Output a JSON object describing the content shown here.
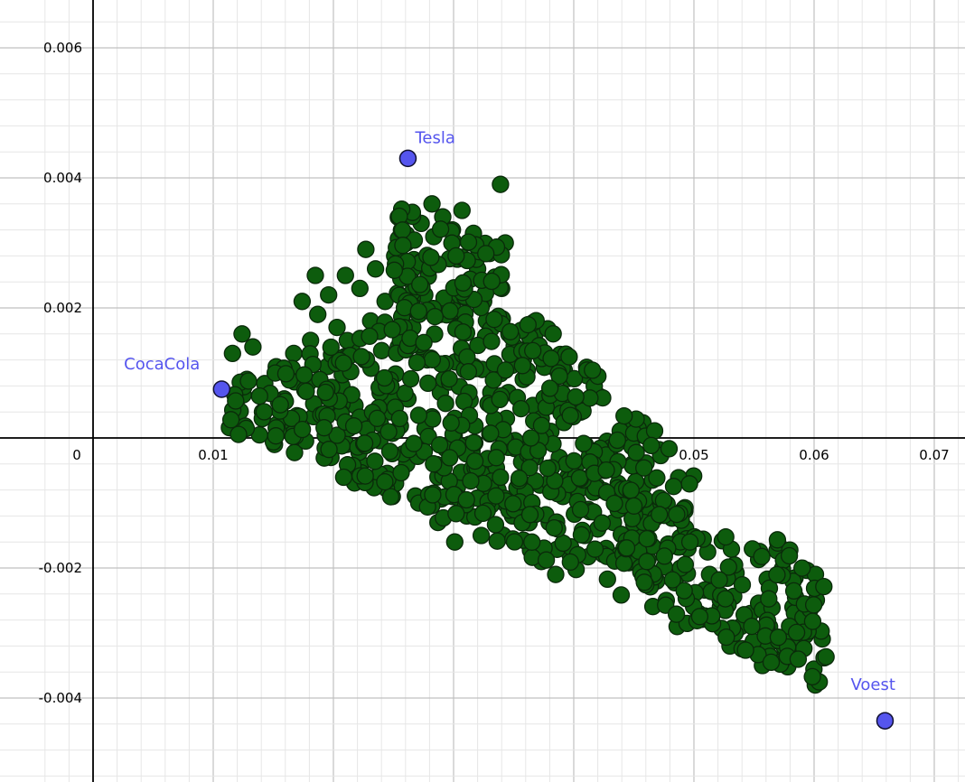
{
  "chart_data": {
    "type": "scatter",
    "title": "",
    "xlabel": "",
    "ylabel": "",
    "xlim": [
      -0.0005,
      0.0725
    ],
    "ylim": [
      -0.0052,
      0.0066
    ],
    "grid": true,
    "x_ticks": [
      0,
      0.01,
      0.05,
      0.06,
      0.07
    ],
    "x_tick_labels": [
      "0",
      "0.01",
      "0.05",
      "0.06",
      "0.07"
    ],
    "y_ticks": [
      0.006,
      0.004,
      0.002,
      -0.002,
      -0.004
    ],
    "y_tick_labels": [
      "0.006",
      "0.004",
      "0.002",
      "-0.002",
      "-0.004"
    ],
    "colors": {
      "cloud_fill": "#0d5c0d",
      "cloud_stroke": "#0a2a0a",
      "highlight_fill": "#5555ee",
      "highlight_label": "#5555ee"
    },
    "cloud_points_approx": [
      [
        0.0116,
        0.0013
      ],
      [
        0.0124,
        0.0016
      ],
      [
        0.0133,
        0.0014
      ],
      [
        0.0128,
        0.0009
      ],
      [
        0.012,
        0.0006
      ],
      [
        0.0141,
        0.0004
      ],
      [
        0.0151,
        -0.0001
      ],
      [
        0.0159,
        0.0006
      ],
      [
        0.0167,
        0.0013
      ],
      [
        0.0174,
        0.0021
      ],
      [
        0.0185,
        0.0025
      ],
      [
        0.0196,
        0.0022
      ],
      [
        0.021,
        0.0025
      ],
      [
        0.0222,
        0.0023
      ],
      [
        0.0227,
        0.0029
      ],
      [
        0.0235,
        0.0026
      ],
      [
        0.0243,
        0.0021
      ],
      [
        0.0251,
        0.0028
      ],
      [
        0.0258,
        0.0031
      ],
      [
        0.0266,
        0.0026
      ],
      [
        0.0273,
        0.0033
      ],
      [
        0.0282,
        0.0036
      ],
      [
        0.0291,
        0.0034
      ],
      [
        0.0299,
        0.0032
      ],
      [
        0.0307,
        0.0035
      ],
      [
        0.0314,
        0.003
      ],
      [
        0.032,
        0.0026
      ],
      [
        0.0325,
        0.0021
      ],
      [
        0.0339,
        0.0039
      ],
      [
        0.0343,
        0.003
      ],
      [
        0.034,
        0.0023
      ],
      [
        0.0346,
        0.0016
      ],
      [
        0.0352,
        0.0013
      ],
      [
        0.0358,
        0.0009
      ],
      [
        0.0366,
        0.0005
      ],
      [
        0.0373,
        0.0003
      ],
      [
        0.0381,
        0.0001
      ],
      [
        0.0388,
        -0.0003
      ],
      [
        0.0395,
        -0.0006
      ],
      [
        0.0404,
        -0.0008
      ],
      [
        0.0412,
        -0.0011
      ],
      [
        0.042,
        -0.0014
      ],
      [
        0.0427,
        -0.0017
      ],
      [
        0.0433,
        -0.0013
      ],
      [
        0.044,
        -0.0009
      ],
      [
        0.0448,
        -0.0011
      ],
      [
        0.0455,
        -0.0015
      ],
      [
        0.0461,
        -0.0019
      ],
      [
        0.0469,
        -0.0022
      ],
      [
        0.0477,
        -0.0025
      ],
      [
        0.0486,
        -0.0029
      ],
      [
        0.0495,
        -0.0017
      ],
      [
        0.0504,
        -0.0027
      ],
      [
        0.0513,
        -0.0021
      ],
      [
        0.0522,
        -0.0026
      ],
      [
        0.053,
        -0.0032
      ],
      [
        0.0539,
        -0.0029
      ],
      [
        0.0547,
        -0.0027
      ],
      [
        0.0557,
        -0.0035
      ],
      [
        0.0579,
        -0.0032
      ],
      [
        0.0601,
        -0.0038
      ],
      [
        0.0181,
        0.0015
      ],
      [
        0.0195,
        0.0011
      ],
      [
        0.0207,
        0.0008
      ],
      [
        0.0218,
        0.0005
      ],
      [
        0.0229,
        0.0002
      ],
      [
        0.0241,
        0.0009
      ],
      [
        0.0254,
        0.0014
      ],
      [
        0.0266,
        0.0017
      ],
      [
        0.0278,
        0.0012
      ],
      [
        0.0289,
        0.0007
      ],
      [
        0.0301,
        0.0003
      ],
      [
        0.0313,
        -0.0001
      ],
      [
        0.0325,
        -0.0005
      ],
      [
        0.0337,
        -0.0008
      ],
      [
        0.0349,
        -0.0012
      ],
      [
        0.0361,
        -0.0016
      ],
      [
        0.0373,
        -0.0019
      ],
      [
        0.0385,
        -0.0021
      ],
      [
        0.0397,
        -0.0018
      ],
      [
        0.0409,
        -0.0015
      ],
      [
        0.0198,
        -0.0003
      ],
      [
        0.0211,
        -0.0001
      ],
      [
        0.0223,
        -0.0004
      ],
      [
        0.0236,
        -0.0006
      ],
      [
        0.0249,
        -0.0009
      ],
      [
        0.0261,
        -0.0004
      ],
      [
        0.0274,
        -0.0002
      ],
      [
        0.0287,
        -0.0006
      ],
      [
        0.0299,
        -0.0009
      ],
      [
        0.0311,
        -0.0012
      ],
      [
        0.0323,
        -0.0015
      ],
      [
        0.0287,
        -0.0013
      ],
      [
        0.0301,
        -0.0016
      ],
      [
        0.0187,
        0.0019
      ],
      [
        0.0203,
        0.0017
      ],
      [
        0.0215,
        0.0014
      ],
      [
        0.0231,
        0.0018
      ],
      [
        0.0247,
        0.0004
      ],
      [
        0.0262,
        0.0006
      ],
      [
        0.0276,
        0.0022
      ],
      [
        0.0289,
        0.0019
      ],
      [
        0.0303,
        0.0017
      ],
      [
        0.0317,
        0.0011
      ],
      [
        0.0331,
        0.0007
      ],
      [
        0.0344,
        0.0003
      ],
      [
        0.0356,
        -0.0001
      ],
      [
        0.0368,
        -0.0003
      ],
      [
        0.0379,
        -0.0007
      ],
      [
        0.0391,
        -0.0009
      ],
      [
        0.0403,
        -0.0004
      ],
      [
        0.0415,
        -0.0002
      ],
      [
        0.0426,
        -0.0005
      ],
      [
        0.0437,
        -0.0007
      ],
      [
        0.0449,
        -0.0004
      ]
    ],
    "highlighted_points": [
      {
        "label": "Tesla",
        "x": 0.0262,
        "y": 0.0043
      },
      {
        "label": "CocaCola",
        "x": 0.0107,
        "y": 0.00075
      },
      {
        "label": "Voest",
        "x": 0.0659,
        "y": -0.00435
      }
    ]
  }
}
